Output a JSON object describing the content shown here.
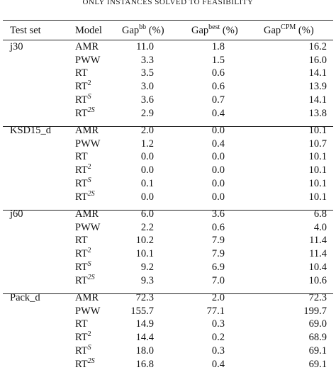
{
  "caption": "ONLY INSTANCES SOLVED TO FEASIBILITY",
  "header": {
    "test_set": "Test set",
    "model": "Model",
    "gaps": [
      {
        "base": "Gap",
        "sup": "bb",
        "unit": "(%)"
      },
      {
        "base": "Gap",
        "sup": "best",
        "unit": "(%)"
      },
      {
        "base": "Gap",
        "sup": "CPM",
        "unit": "(%)"
      }
    ]
  },
  "groups": [
    {
      "test_set": "j30",
      "rows": [
        {
          "model": "AMR",
          "values": [
            "11.0",
            "1.8",
            "16.2"
          ]
        },
        {
          "model": "PWW",
          "values": [
            "3.3",
            "1.5",
            "16.0"
          ]
        },
        {
          "model": "RT",
          "values": [
            "3.5",
            "0.6",
            "14.1"
          ]
        },
        {
          "model": "RT",
          "model_sup": "2",
          "values": [
            "3.0",
            "0.6",
            "13.9"
          ]
        },
        {
          "model": "RT",
          "model_sup": "S",
          "values": [
            "3.6",
            "0.7",
            "14.1"
          ]
        },
        {
          "model": "RT",
          "model_sup": "2S",
          "values": [
            "2.9",
            "0.4",
            "13.8"
          ]
        }
      ]
    },
    {
      "test_set": "KSD15_d",
      "rows": [
        {
          "model": "AMR",
          "values": [
            "2.0",
            "0.0",
            "10.1"
          ]
        },
        {
          "model": "PWW",
          "values": [
            "1.2",
            "0.4",
            "10.7"
          ]
        },
        {
          "model": "RT",
          "values": [
            "0.0",
            "0.0",
            "10.1"
          ]
        },
        {
          "model": "RT",
          "model_sup": "2",
          "values": [
            "0.0",
            "0.0",
            "10.1"
          ]
        },
        {
          "model": "RT",
          "model_sup": "S",
          "values": [
            "0.1",
            "0.0",
            "10.1"
          ]
        },
        {
          "model": "RT",
          "model_sup": "2S",
          "values": [
            "0.0",
            "0.0",
            "10.1"
          ]
        }
      ]
    },
    {
      "test_set": "j60",
      "rows": [
        {
          "model": "AMR",
          "values": [
            "6.0",
            "3.6",
            "6.8"
          ]
        },
        {
          "model": "PWW",
          "values": [
            "2.2",
            "0.6",
            "4.0"
          ]
        },
        {
          "model": "RT",
          "values": [
            "10.2",
            "7.9",
            "11.4"
          ]
        },
        {
          "model": "RT",
          "model_sup": "2",
          "values": [
            "10.1",
            "7.9",
            "11.4"
          ]
        },
        {
          "model": "RT",
          "model_sup": "S",
          "values": [
            "9.2",
            "6.9",
            "10.4"
          ]
        },
        {
          "model": "RT",
          "model_sup": "2S",
          "values": [
            "9.3",
            "7.0",
            "10.6"
          ]
        }
      ]
    },
    {
      "test_set": "Pack_d",
      "rows": [
        {
          "model": "AMR",
          "values": [
            "72.3",
            "2.0",
            "72.3"
          ]
        },
        {
          "model": "PWW",
          "values": [
            "155.7",
            "77.1",
            "199.7"
          ]
        },
        {
          "model": "RT",
          "values": [
            "14.9",
            "0.3",
            "69.0"
          ]
        },
        {
          "model": "RT",
          "model_sup": "2",
          "values": [
            "14.4",
            "0.2",
            "68.9"
          ]
        },
        {
          "model": "RT",
          "model_sup": "S",
          "values": [
            "18.0",
            "0.3",
            "69.1"
          ]
        },
        {
          "model": "RT",
          "model_sup": "2S",
          "values": [
            "16.8",
            "0.4",
            "69.1"
          ]
        }
      ]
    }
  ]
}
